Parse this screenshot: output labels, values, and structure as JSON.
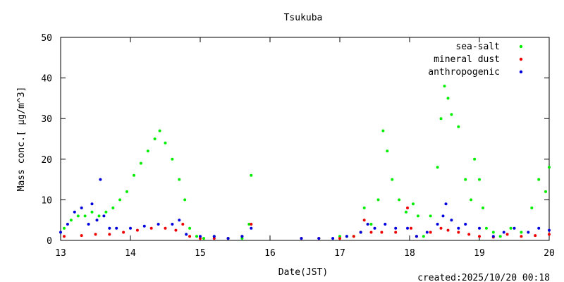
{
  "chart_data": {
    "type": "scatter",
    "title": "Tsukuba",
    "xlabel": "Date(JST)",
    "ylabel": "Mass conc.[ μg/m^3]",
    "xlim": [
      13,
      20
    ],
    "ylim": [
      0,
      50
    ],
    "x_ticks": [
      "13",
      "14",
      "15",
      "16",
      "17",
      "18",
      "19",
      "20"
    ],
    "y_ticks": [
      "0",
      "10",
      "20",
      "30",
      "40",
      "50"
    ],
    "legend_position": "top-right",
    "grid": false,
    "series": [
      {
        "name": "sea-salt",
        "color": "#00ee00",
        "x": [
          13.05,
          13.15,
          13.25,
          13.35,
          13.45,
          13.55,
          13.65,
          13.75,
          13.85,
          13.95,
          14.05,
          14.15,
          14.25,
          14.35,
          14.42,
          14.5,
          14.6,
          14.7,
          14.78,
          14.85,
          14.95,
          15.05,
          15.2,
          15.4,
          15.6,
          15.7,
          15.73,
          17.0,
          17.1,
          17.2,
          17.3,
          17.35,
          17.45,
          17.55,
          17.62,
          17.68,
          17.75,
          17.85,
          17.95,
          18.05,
          18.12,
          18.2,
          18.3,
          18.4,
          18.45,
          18.5,
          18.55,
          18.6,
          18.7,
          18.8,
          18.88,
          18.93,
          19.0,
          19.05,
          19.1,
          19.2,
          19.3,
          19.45,
          19.6,
          19.75,
          19.85,
          19.95,
          20.0
        ],
        "y": [
          3,
          5,
          6,
          6,
          7,
          6,
          7,
          8,
          10,
          12,
          16,
          19,
          22,
          25,
          27,
          24,
          20,
          15,
          10,
          3,
          1,
          0.5,
          1,
          0.5,
          0.5,
          4,
          16,
          1,
          1,
          1,
          2,
          8,
          4,
          10,
          27,
          22,
          15,
          10,
          7,
          9,
          6,
          1,
          6,
          18,
          30,
          38,
          35,
          31,
          28,
          15,
          10,
          20,
          15,
          8,
          3,
          2,
          1,
          3,
          2,
          8,
          15,
          12,
          18
        ]
      },
      {
        "name": "mineral dust",
        "color": "#ee0000",
        "x": [
          13.05,
          13.3,
          13.5,
          13.7,
          13.9,
          14.1,
          14.3,
          14.5,
          14.65,
          14.75,
          14.85,
          15.0,
          15.2,
          15.4,
          15.6,
          15.73,
          16.45,
          16.7,
          17.0,
          17.2,
          17.3,
          17.35,
          17.45,
          17.6,
          17.8,
          17.97,
          18.02,
          18.1,
          18.3,
          18.45,
          18.55,
          18.7,
          18.85,
          19.0,
          19.2,
          19.4,
          19.6,
          19.8,
          20.0
        ],
        "y": [
          1,
          1.2,
          1.5,
          1.5,
          2,
          2.5,
          3,
          3,
          2.5,
          4,
          1,
          0.5,
          0.5,
          0.5,
          1,
          4,
          0.5,
          0.5,
          0.5,
          1,
          2,
          5,
          2,
          2,
          2,
          8,
          3,
          1,
          2,
          3,
          2.5,
          2,
          1.5,
          1,
          0.8,
          1.5,
          1,
          1.2,
          1.5
        ]
      },
      {
        "name": "anthropogenic",
        "color": "#0000dd",
        "x": [
          13.0,
          13.1,
          13.2,
          13.3,
          13.4,
          13.45,
          13.52,
          13.57,
          13.62,
          13.7,
          13.8,
          14.0,
          14.2,
          14.4,
          14.6,
          14.7,
          14.8,
          15.0,
          15.2,
          15.4,
          15.6,
          15.73,
          16.45,
          16.7,
          16.9,
          17.1,
          17.3,
          17.4,
          17.5,
          17.65,
          17.8,
          17.97,
          18.1,
          18.25,
          18.4,
          18.48,
          18.52,
          18.6,
          18.7,
          18.8,
          19.0,
          19.2,
          19.35,
          19.5,
          19.7,
          19.85,
          20.0
        ],
        "y": [
          2,
          4,
          7,
          8,
          4,
          9,
          5,
          15,
          6,
          3,
          3,
          3,
          3.5,
          4,
          4,
          5,
          1.5,
          1,
          1,
          0.5,
          1,
          3,
          0.5,
          0.5,
          0.5,
          1,
          2,
          4,
          3,
          4,
          3,
          3,
          1,
          2,
          4,
          6,
          9,
          5,
          3,
          4,
          3,
          1,
          2,
          3,
          2,
          3,
          2.5
        ]
      }
    ],
    "annotation": "created:2025/10/20 00:18"
  }
}
